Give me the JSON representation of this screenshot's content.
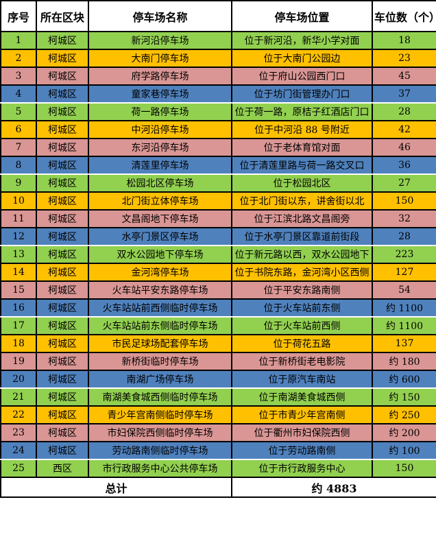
{
  "chart_data": {
    "type": "table",
    "columns": [
      "序号",
      "所在区块",
      "停车场名称",
      "停车场位置",
      "车位数（个）"
    ],
    "rows": [
      {
        "no": "1",
        "district": "柯城区",
        "name": "新河沿停车场",
        "location": "位于新河沿，新华小学对面",
        "spaces": "18",
        "color": "green"
      },
      {
        "no": "2",
        "district": "柯城区",
        "name": "大南门停车场",
        "location": "位于大南门公园边",
        "spaces": "23",
        "color": "orange"
      },
      {
        "no": "3",
        "district": "柯城区",
        "name": "府学路停车场",
        "location": "位于府山公园西门口",
        "spaces": "45",
        "color": "pink"
      },
      {
        "no": "4",
        "district": "柯城区",
        "name": "童家巷停车场",
        "location": "位于坊门街管理办门口",
        "spaces": "37",
        "color": "blue"
      },
      {
        "no": "5",
        "district": "柯城区",
        "name": "荷一路停车场",
        "location": "位于荷一路，原桔子红酒店门口",
        "spaces": "28",
        "color": "green"
      },
      {
        "no": "6",
        "district": "柯城区",
        "name": "中河沿停车场",
        "location": "位于中河沿 88 号附近",
        "spaces": "42",
        "color": "orange"
      },
      {
        "no": "7",
        "district": "柯城区",
        "name": "东河沿停车场",
        "location": "位于老体育馆对面",
        "spaces": "46",
        "color": "pink"
      },
      {
        "no": "8",
        "district": "柯城区",
        "name": "清莲里停车场",
        "location": "位于清莲里路与荷一路交叉口",
        "spaces": "36",
        "color": "blue"
      },
      {
        "no": "9",
        "district": "柯城区",
        "name": "松园北区停车场",
        "location": "位于松园北区",
        "spaces": "27",
        "color": "green"
      },
      {
        "no": "10",
        "district": "柯城区",
        "name": "北门街立体停车场",
        "location": "位于北门街以东，讲舍街以北",
        "spaces": "150",
        "color": "orange"
      },
      {
        "no": "11",
        "district": "柯城区",
        "name": "文昌阁地下停车场",
        "location": "位于江滨北路文昌阁旁",
        "spaces": "32",
        "color": "pink"
      },
      {
        "no": "12",
        "district": "柯城区",
        "name": "水亭门景区停车场",
        "location": "位于水亭门景区靠道前街段",
        "spaces": "28",
        "color": "blue"
      },
      {
        "no": "13",
        "district": "柯城区",
        "name": "双水公园地下停车场",
        "location": "位于新元路以西，双水公园地下",
        "spaces": "223",
        "color": "green"
      },
      {
        "no": "14",
        "district": "柯城区",
        "name": "金河湾停车场",
        "location": "位于书院东路，金河湾小区西侧",
        "spaces": "127",
        "color": "orange"
      },
      {
        "no": "15",
        "district": "柯城区",
        "name": "火车站平安东路停车场",
        "location": "位于平安东路南侧",
        "spaces": "54",
        "color": "pink"
      },
      {
        "no": "16",
        "district": "柯城区",
        "name": "火车站站前西侧临时停车场",
        "location": "位于火车站前东侧",
        "spaces": "约 1100",
        "color": "blue"
      },
      {
        "no": "17",
        "district": "柯城区",
        "name": "火车站站前东侧临时停车场",
        "location": "位于火车站前西侧",
        "spaces": "约 1100",
        "color": "green"
      },
      {
        "no": "18",
        "district": "柯城区",
        "name": "市民足球场配套停车场",
        "location": "位于荷花五路",
        "spaces": "137",
        "color": "orange"
      },
      {
        "no": "19",
        "district": "柯城区",
        "name": "新桥街临时停车场",
        "location": "位于新桥街老电影院",
        "spaces": "约 180",
        "color": "pink"
      },
      {
        "no": "20",
        "district": "柯城区",
        "name": "南湖广场停车场",
        "location": "位于原汽车南站",
        "spaces": "约 600",
        "color": "blue"
      },
      {
        "no": "21",
        "district": "柯城区",
        "name": "南湖美食城西侧临时停车场",
        "location": "位于南湖美食城西侧",
        "spaces": "约 150",
        "color": "green"
      },
      {
        "no": "22",
        "district": "柯城区",
        "name": "青少年宫南侧临时停车场",
        "location": "位于市青少年宫南侧",
        "spaces": "约 250",
        "color": "orange"
      },
      {
        "no": "23",
        "district": "柯城区",
        "name": "市妇保院西侧临时停车场",
        "location": "位于衢州市妇保院西侧",
        "spaces": "约 200",
        "color": "pink"
      },
      {
        "no": "24",
        "district": "柯城区",
        "name": "劳动路南侧临时停车场",
        "location": "位于劳动路南侧",
        "spaces": "约 100",
        "color": "blue"
      },
      {
        "no": "25",
        "district": "西区",
        "name": "市行政服务中心公共停车场",
        "location": "位于市行政服务中心",
        "spaces": "150",
        "color": "green"
      }
    ],
    "footer": {
      "label": "总计",
      "total": "约 4883"
    },
    "colors": {
      "green": "#92D050",
      "orange": "#FFC000",
      "pink": "#D99694",
      "blue": "#4F81BD",
      "header_bg": "#FFFFFF",
      "border": "#000000",
      "text": "#000000"
    },
    "layout": {
      "grid": "on",
      "row_color_cycle": [
        "green",
        "orange",
        "pink",
        "blue"
      ]
    }
  }
}
